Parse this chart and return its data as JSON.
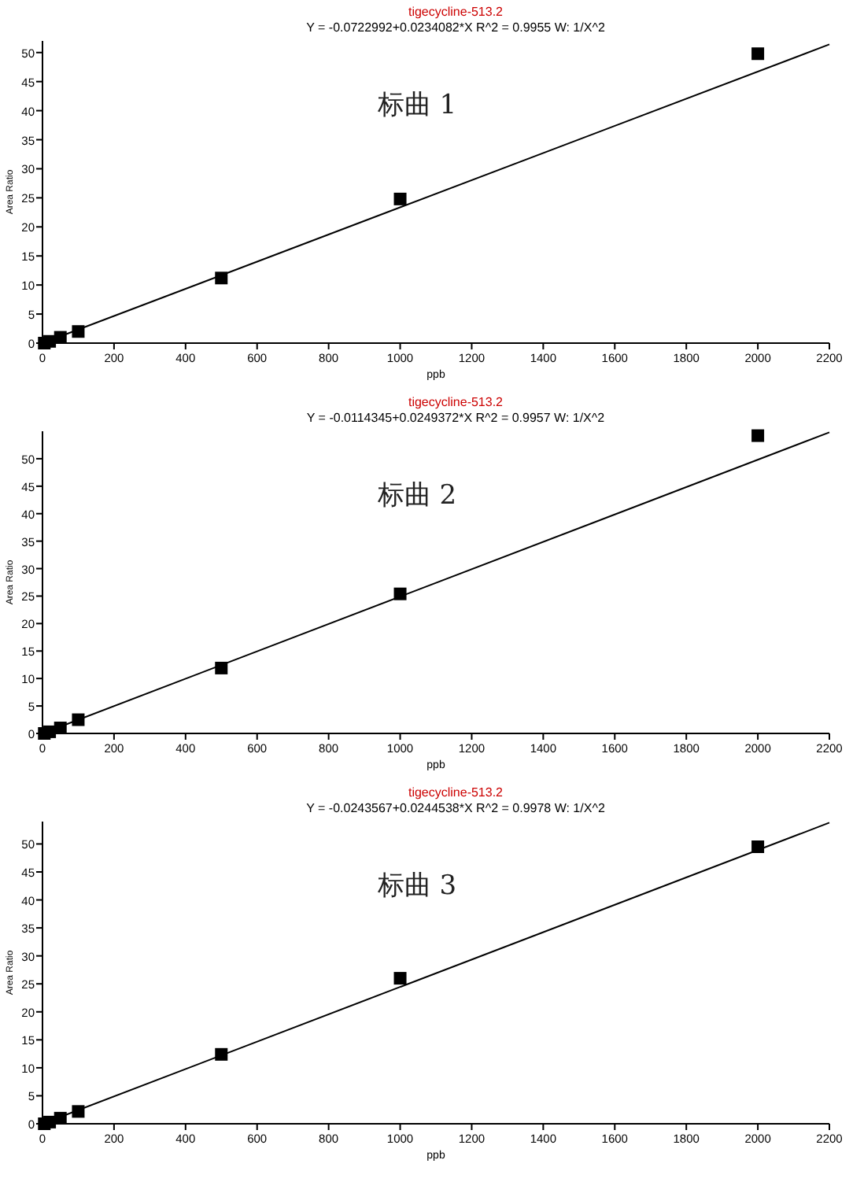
{
  "chart_data": [
    {
      "type": "scatter",
      "title": "tigecycline-513.2",
      "subtitle": "Y = -0.0722992+0.0234082*X   R^2 = 0.9955   W: 1/X^2",
      "xlabel": "ppb",
      "ylabel": "Area Ratio",
      "annotations": [
        "标曲 1"
      ],
      "xlim": [
        0,
        2200
      ],
      "xticks": [
        0,
        200,
        400,
        600,
        800,
        1000,
        1200,
        1400,
        1600,
        1800,
        2000,
        2200
      ],
      "ylim": [
        0,
        52
      ],
      "yticks": [
        0,
        5,
        10,
        15,
        20,
        25,
        30,
        35,
        40,
        45,
        50
      ],
      "grid": false,
      "series": [
        {
          "marker": "square",
          "color": "#000000",
          "x": [
            5,
            20,
            50,
            100,
            500,
            1000,
            2000
          ],
          "values": [
            0,
            0.3,
            1.0,
            2.0,
            11.2,
            24.8,
            49.8
          ]
        },
        {
          "type": "line",
          "marker": "none",
          "color": "#000000",
          "x": [
            0,
            2200
          ],
          "values": [
            0,
            51.4
          ]
        }
      ]
    },
    {
      "type": "scatter",
      "title": "tigecycline-513.2",
      "subtitle": "Y = -0.0114345+0.0249372*X   R^2 = 0.9957   W: 1/X^2",
      "xlabel": "ppb",
      "ylabel": "Area Ratio",
      "annotations": [
        "标曲 2"
      ],
      "xlim": [
        0,
        2200
      ],
      "xticks": [
        0,
        200,
        400,
        600,
        800,
        1000,
        1200,
        1400,
        1600,
        1800,
        2000,
        2200
      ],
      "ylim": [
        0,
        55
      ],
      "yticks": [
        0,
        5,
        10,
        15,
        20,
        25,
        30,
        35,
        40,
        45,
        50
      ],
      "grid": false,
      "series": [
        {
          "marker": "square",
          "color": "#000000",
          "x": [
            5,
            20,
            50,
            100,
            500,
            1000,
            2000
          ],
          "values": [
            0,
            0.3,
            1.0,
            2.5,
            11.9,
            25.4,
            54.2
          ]
        },
        {
          "type": "line",
          "marker": "none",
          "color": "#000000",
          "x": [
            0,
            2200
          ],
          "values": [
            0,
            54.8
          ]
        }
      ]
    },
    {
      "type": "scatter",
      "title": "tigecycline-513.2",
      "subtitle": "Y = -0.0243567+0.0244538*X   R^2 = 0.9978   W: 1/X^2",
      "xlabel": "ppb",
      "ylabel": "Area Ratio",
      "annotations": [
        "标曲 3"
      ],
      "xlim": [
        0,
        2200
      ],
      "xticks": [
        0,
        200,
        400,
        600,
        800,
        1000,
        1200,
        1400,
        1600,
        1800,
        2000,
        2200
      ],
      "ylim": [
        0,
        54
      ],
      "yticks": [
        0,
        5,
        10,
        15,
        20,
        25,
        30,
        35,
        40,
        45,
        50
      ],
      "grid": false,
      "series": [
        {
          "marker": "square",
          "color": "#000000",
          "x": [
            5,
            20,
            50,
            100,
            500,
            1000,
            2000
          ],
          "values": [
            0,
            0.3,
            1.0,
            2.2,
            12.4,
            26.0,
            49.5
          ]
        },
        {
          "type": "line",
          "marker": "none",
          "color": "#000000",
          "x": [
            0,
            2200
          ],
          "values": [
            0,
            53.8
          ]
        }
      ]
    }
  ]
}
